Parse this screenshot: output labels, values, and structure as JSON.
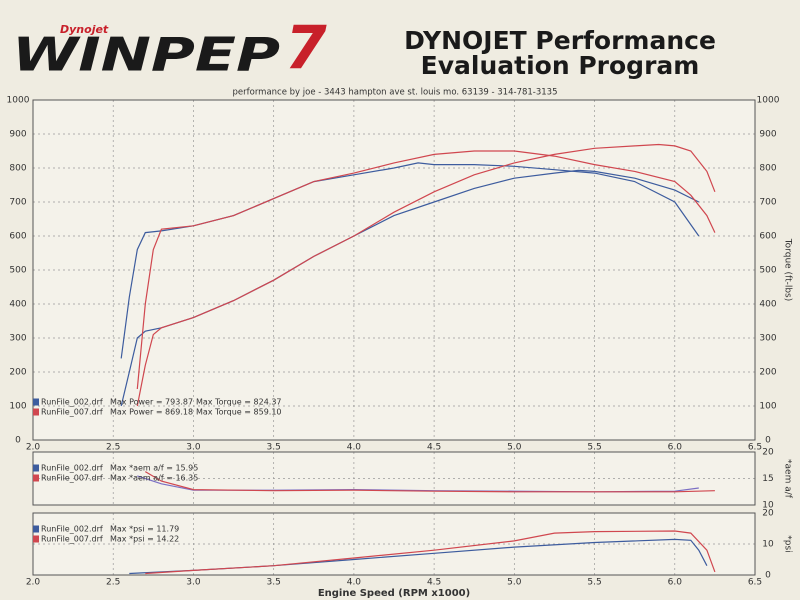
{
  "header": {
    "logo_top": "Dynojet",
    "logo": "WINPEP",
    "logo_number": "7",
    "title_line1": "DYNOJET Performance",
    "title_line2": "Evaluation Program",
    "subtitle": "performance by joe - 3443 hampton ave st. louis mo. 63139 - 314-781-3135"
  },
  "chart_data": [
    {
      "type": "line",
      "xlim": [
        2.0,
        6.5
      ],
      "xticks": [
        {
          "value": 2,
          "label": "2.0"
        },
        2.5,
        {
          "value": 3,
          "label": "3.0"
        },
        3.5,
        {
          "value": 4,
          "label": "4.0"
        },
        4.5,
        {
          "value": 5,
          "label": "5.0"
        },
        5.5,
        {
          "value": 6,
          "label": "6.0"
        },
        6.5
      ],
      "ylim": [
        0,
        1000
      ],
      "yticks": [
        0,
        100,
        200,
        300,
        400,
        500,
        600,
        700,
        800,
        900,
        1000
      ],
      "y2lim": [
        0,
        1000
      ],
      "y2ticks": [
        0,
        100,
        200,
        300,
        400,
        500,
        600,
        700,
        800,
        900,
        1000
      ],
      "y2label": "Torque (ft-lbs)",
      "grid": true,
      "legend": [
        {
          "file": "RunFile_002.drf",
          "color": "#3d5c9e",
          "labels": [
            "Max Power = 793.87",
            "Max Torque = 824.37"
          ]
        },
        {
          "file": "RunFile_007.drf",
          "color": "#d0474f",
          "labels": [
            "Max Power = 869.18",
            "Max Torque = 859.10"
          ]
        }
      ],
      "series": [
        {
          "color": "#3d5c9e",
          "x": [
            2.55,
            2.6,
            2.65,
            2.7,
            2.8,
            3.0,
            3.25,
            3.5,
            3.75,
            4.0,
            4.25,
            4.5,
            4.75,
            5.0,
            5.25,
            5.4,
            5.5,
            5.75,
            6.0,
            6.15
          ],
          "values": [
            100,
            200,
            300,
            320,
            330,
            360,
            410,
            470,
            540,
            600,
            660,
            700,
            740,
            770,
            785,
            793,
            790,
            770,
            735,
            700
          ]
        },
        {
          "color": "#3d5c9e",
          "axis": "y2",
          "x": [
            2.55,
            2.6,
            2.65,
            2.7,
            2.8,
            3.0,
            3.25,
            3.5,
            3.75,
            4.0,
            4.25,
            4.4,
            4.5,
            4.75,
            5.0,
            5.25,
            5.5,
            5.75,
            6.0,
            6.15
          ],
          "values": [
            240,
            420,
            560,
            610,
            615,
            630,
            660,
            710,
            760,
            780,
            800,
            815,
            810,
            810,
            805,
            795,
            785,
            760,
            700,
            600
          ]
        },
        {
          "color": "#d0474f",
          "x": [
            2.65,
            2.7,
            2.75,
            2.8,
            3.0,
            3.25,
            3.5,
            3.75,
            4.0,
            4.25,
            4.5,
            4.75,
            5.0,
            5.25,
            5.5,
            5.75,
            5.9,
            6.0,
            6.1,
            6.2,
            6.25
          ],
          "values": [
            100,
            220,
            310,
            330,
            360,
            410,
            470,
            540,
            600,
            670,
            730,
            780,
            815,
            840,
            858,
            865,
            869,
            865,
            850,
            790,
            730
          ]
        },
        {
          "color": "#d0474f",
          "axis": "y2",
          "x": [
            2.65,
            2.7,
            2.75,
            2.8,
            3.0,
            3.25,
            3.5,
            3.75,
            4.0,
            4.25,
            4.5,
            4.75,
            5.0,
            5.25,
            5.5,
            5.75,
            6.0,
            6.1,
            6.2,
            6.25
          ],
          "values": [
            150,
            400,
            560,
            620,
            630,
            660,
            710,
            760,
            785,
            815,
            840,
            850,
            850,
            835,
            810,
            790,
            760,
            720,
            660,
            610
          ]
        }
      ]
    },
    {
      "type": "line",
      "xlim": [
        2.0,
        6.5
      ],
      "y2lim": [
        10,
        20
      ],
      "y2ticks": [
        10,
        15,
        20
      ],
      "y2label": "*aem a/f",
      "grid": true,
      "legend": [
        {
          "file": "RunFile_002.drf",
          "color": "#3d5c9e",
          "labels": [
            "Max *aem a/f = 15.95"
          ]
        },
        {
          "file": "RunFile_007.drf",
          "color": "#d0474f",
          "labels": [
            "Max *aem a/f = 16.35"
          ]
        }
      ],
      "series": [
        {
          "color": "#7b6fc4",
          "axis": "y2",
          "x": [
            2.65,
            2.8,
            3.0,
            3.5,
            4.0,
            4.5,
            5.0,
            5.5,
            6.0,
            6.15
          ],
          "values": [
            15.5,
            14,
            12.8,
            12.8,
            12.9,
            12.7,
            12.6,
            12.5,
            12.6,
            13.2
          ]
        },
        {
          "color": "#d0474f",
          "axis": "y2",
          "x": [
            2.7,
            2.8,
            3.0,
            3.5,
            4.0,
            4.5,
            5.0,
            5.5,
            6.0,
            6.25
          ],
          "values": [
            16.3,
            14.5,
            12.9,
            12.7,
            12.8,
            12.6,
            12.5,
            12.5,
            12.5,
            12.7
          ]
        }
      ]
    },
    {
      "type": "line",
      "xlim": [
        2.0,
        6.5
      ],
      "xticks": [
        {
          "value": 2,
          "label": "2.0"
        },
        2.5,
        {
          "value": 3,
          "label": "3.0"
        },
        3.5,
        {
          "value": 4,
          "label": "4.0"
        },
        4.5,
        {
          "value": 5,
          "label": "5.0"
        },
        5.5,
        {
          "value": 6,
          "label": "6.0"
        },
        6.5
      ],
      "xlabel": "Engine Speed (RPM x1000)",
      "y2lim": [
        0,
        20
      ],
      "y2ticks": [
        0,
        10,
        20
      ],
      "y2label": "*psi",
      "grid": true,
      "legend": [
        {
          "file": "RunFile_002.drf",
          "color": "#3d5c9e",
          "labels": [
            "Max *psi = 11.79"
          ]
        },
        {
          "file": "RunFile_007.drf",
          "color": "#d0474f",
          "labels": [
            "Max *psi = 14.22"
          ]
        }
      ],
      "series": [
        {
          "color": "#3d5c9e",
          "axis": "y2",
          "x": [
            2.6,
            3.0,
            3.5,
            4.0,
            4.5,
            5.0,
            5.5,
            6.0,
            6.1,
            6.15,
            6.2
          ],
          "values": [
            0.5,
            1.5,
            3,
            5,
            7,
            9,
            10.5,
            11.5,
            11.2,
            8,
            3
          ]
        },
        {
          "color": "#d0474f",
          "axis": "y2",
          "x": [
            2.7,
            3.0,
            3.5,
            4.0,
            4.5,
            5.0,
            5.25,
            5.5,
            6.0,
            6.1,
            6.2,
            6.25
          ],
          "values": [
            0.5,
            1.5,
            3,
            5.5,
            8,
            11,
            13.5,
            14,
            14.2,
            13.5,
            8,
            1
          ]
        }
      ]
    }
  ]
}
